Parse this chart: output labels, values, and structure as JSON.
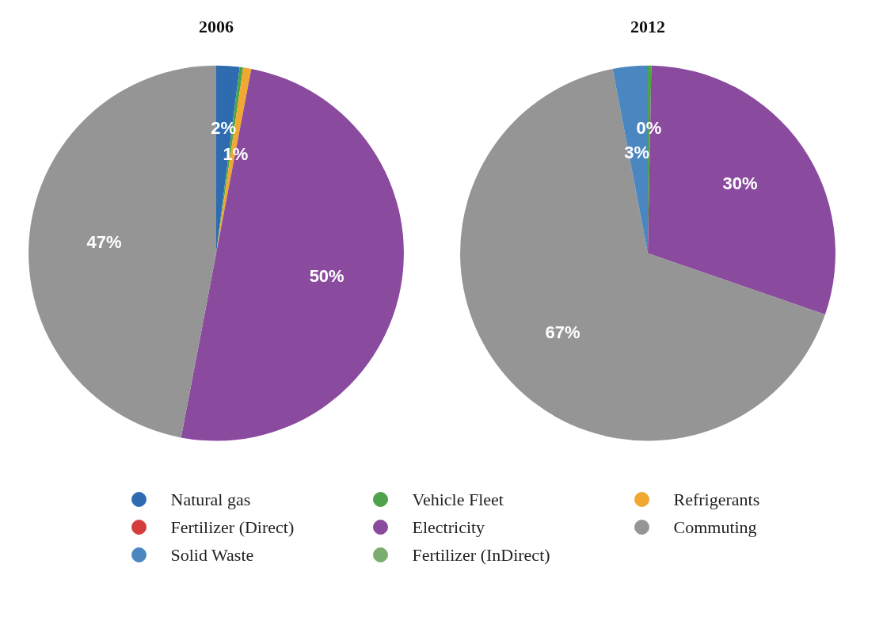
{
  "chart_data": [
    {
      "type": "pie",
      "title": "2006",
      "legend": "bottom",
      "categories": [
        "Natural gas",
        "Vehicle Fleet",
        "Refrigerants",
        "Fertilizer (Direct)",
        "Electricity",
        "Commuting",
        "Solid Waste",
        "Fertilizer (InDirect)"
      ],
      "values": [
        2,
        0.3,
        0.7,
        0,
        50,
        47,
        0,
        0
      ],
      "value_labels": [
        "2%",
        null,
        "1%",
        null,
        "50%",
        "47%",
        null,
        null
      ],
      "colors": [
        "#2e6bb0",
        "#4ea24a",
        "#f0a830",
        "#d63b3b",
        "#8a4a9e",
        "#959595",
        "#4a86c0",
        "#7aae6e"
      ]
    },
    {
      "type": "pie",
      "title": "2012",
      "values": [
        0,
        0.3,
        0,
        0,
        30,
        66.7,
        3,
        0
      ],
      "value_labels": [
        null,
        "0%",
        null,
        null,
        "30%",
        "67%",
        "3%",
        null
      ],
      "colors": [
        "#2e6bb0",
        "#4ea24a",
        "#f0a830",
        "#d63b3b",
        "#8a4a9e",
        "#959595",
        "#4a86c0",
        "#7aae6e"
      ]
    }
  ]
}
